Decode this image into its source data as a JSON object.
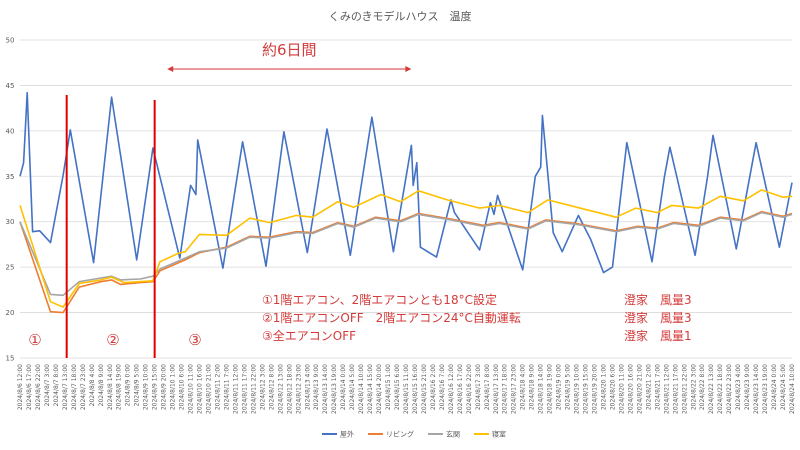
{
  "chart_data": {
    "type": "line",
    "title": "くみのきモデルハウス　温度",
    "ylim": [
      15,
      50
    ],
    "yticks": [
      "15",
      "20",
      "25",
      "30",
      "35",
      "40",
      "45",
      "50"
    ],
    "grid": true,
    "legend_position": "bottom",
    "x_tick_labels": [
      "2024/8/6 12:00",
      "2024/8/6 17:00",
      "2024/8/6 22:00",
      "2024/8/7 3:00",
      "2024/8/7 8:00",
      "2024/8/7 13:00",
      "2024/8/7 18:00",
      "2024/8/7 23:00",
      "2024/8/8 4:00",
      "2024/8/8 9:00",
      "2024/8/8 14:00",
      "2024/8/8 19:00",
      "2024/8/9 0:00",
      "2024/8/9 5:00",
      "2024/8/9 10:00",
      "2024/8/9 15:00",
      "2024/8/9 20:00",
      "2024/8/10 1:00",
      "2024/8/10 6:00",
      "2024/8/10 11:00",
      "2024/8/10 16:00",
      "2024/8/10 21:00",
      "2024/8/11 2:00",
      "2024/8/11 7:00",
      "2024/8/11 12:00",
      "2024/8/11 17:00",
      "2024/8/11 22:00",
      "2024/8/12 3:00",
      "2024/8/12 8:00",
      "2024/8/12 13:00",
      "2024/8/12 18:00",
      "2024/8/12 23:00",
      "2024/8/13 4:00",
      "2024/8/13 9:00",
      "2024/8/13 14:00",
      "2024/8/13 19:00",
      "2024/8/14 0:00",
      "2024/8/14 5:00",
      "2024/8/14 10:00",
      "2024/8/14 15:00",
      "2024/8/14 20:00",
      "2024/8/15 1:00",
      "2024/8/15 6:00",
      "2024/8/15 11:00",
      "2024/8/15 16:00",
      "2024/8/15 21:00",
      "2024/8/16 2:00",
      "2024/8/16 7:00",
      "2024/8/16 12:00",
      "2024/8/16 17:00",
      "2024/8/16 22:00",
      "2024/8/17 3:00",
      "2024/8/17 8:00",
      "2024/8/17 13:00",
      "2024/8/17 18:00",
      "2024/8/17 23:00",
      "2024/8/18 4:00",
      "2024/8/18 9:00",
      "2024/8/18 14:00",
      "2024/8/18 19:00",
      "2024/8/19 0:00",
      "2024/8/19 5:00",
      "2024/8/19 10:00",
      "2024/8/19 15:00",
      "2024/8/19 20:00",
      "2024/8/20 1:00",
      "2024/8/20 6:00",
      "2024/8/20 11:00",
      "2024/8/20 16:00",
      "2024/8/20 21:00",
      "2024/8/21 2:00",
      "2024/8/21 7:00",
      "2024/8/21 12:00",
      "2024/8/21 17:00",
      "2024/8/21 22:00",
      "2024/8/22 3:00",
      "2024/8/22 8:00",
      "2024/8/22 13:00",
      "2024/8/22 18:00",
      "2024/8/22 23:00",
      "2024/8/23 4:00",
      "2024/8/23 9:00",
      "2024/8/23 14:00",
      "2024/8/23 19:00",
      "2024/8/24 0:00",
      "2024/8/24 5:00",
      "2024/8/24 10:00"
    ],
    "series": [
      {
        "name": "屋外",
        "color": "#4472c4",
        "points": [
          [
            "2024/8/6 12:00",
            35.0
          ],
          [
            "2024/8/6 14:00",
            36.5
          ],
          [
            "2024/8/6 16:00",
            44.2
          ],
          [
            "2024/8/6 19:00",
            28.9
          ],
          [
            "2024/8/6 23:00",
            29.0
          ],
          [
            "2024/8/7 5:00",
            27.7
          ],
          [
            "2024/8/7 12:00",
            35.1
          ],
          [
            "2024/8/7 16:00",
            40.1
          ],
          [
            "2024/8/8 5:00",
            25.5
          ],
          [
            "2024/8/8 15:00",
            43.7
          ],
          [
            "2024/8/9 5:00",
            25.8
          ],
          [
            "2024/8/9 14:00",
            38.1
          ],
          [
            "2024/8/10 5:00",
            26.0
          ],
          [
            "2024/8/10 11:00",
            34.0
          ],
          [
            "2024/8/10 14:00",
            33.0
          ],
          [
            "2024/8/10 15:00",
            39.0
          ],
          [
            "2024/8/11 5:00",
            24.9
          ],
          [
            "2024/8/11 16:00",
            38.8
          ],
          [
            "2024/8/12 5:00",
            25.1
          ],
          [
            "2024/8/12 15:00",
            39.9
          ],
          [
            "2024/8/13 4:00",
            26.6
          ],
          [
            "2024/8/13 15:00",
            40.2
          ],
          [
            "2024/8/14 4:00",
            26.3
          ],
          [
            "2024/8/14 16:00",
            41.5
          ],
          [
            "2024/8/15 4:00",
            26.7
          ],
          [
            "2024/8/15 14:00",
            38.4
          ],
          [
            "2024/8/15 15:00",
            34.0
          ],
          [
            "2024/8/15 17:00",
            36.5
          ],
          [
            "2024/8/15 19:00",
            27.2
          ],
          [
            "2024/8/16 4:00",
            26.1
          ],
          [
            "2024/8/16 12:00",
            32.4
          ],
          [
            "2024/8/16 14:00",
            31.0
          ],
          [
            "2024/8/17 4:00",
            26.9
          ],
          [
            "2024/8/17 10:00",
            32.1
          ],
          [
            "2024/8/17 12:00",
            30.8
          ],
          [
            "2024/8/17 14:00",
            32.9
          ],
          [
            "2024/8/18 4:00",
            24.7
          ],
          [
            "2024/8/18 11:00",
            35.0
          ],
          [
            "2024/8/18 14:00",
            36.0
          ],
          [
            "2024/8/18 15:00",
            41.7
          ],
          [
            "2024/8/18 21:00",
            28.8
          ],
          [
            "2024/8/19 2:00",
            26.7
          ],
          [
            "2024/8/19 11:00",
            30.7
          ],
          [
            "2024/8/19 18:00",
            28.0
          ],
          [
            "2024/8/20 1:00",
            24.4
          ],
          [
            "2024/8/20 6:00",
            25.0
          ],
          [
            "2024/8/20 14:00",
            38.7
          ],
          [
            "2024/8/21 4:00",
            25.6
          ],
          [
            "2024/8/21 11:00",
            35.0
          ],
          [
            "2024/8/21 14:00",
            38.2
          ],
          [
            "2024/8/22 4:00",
            26.3
          ],
          [
            "2024/8/22 11:00",
            35.0
          ],
          [
            "2024/8/22 14:00",
            39.5
          ],
          [
            "2024/8/23 3:00",
            27.0
          ],
          [
            "2024/8/23 11:00",
            35.5
          ],
          [
            "2024/8/23 14:00",
            38.7
          ],
          [
            "2024/8/24 3:00",
            27.2
          ],
          [
            "2024/8/24 10:00",
            34.3
          ]
        ]
      },
      {
        "name": "リビング",
        "color": "#ed7d31",
        "points": [
          [
            "2024/8/6 12:00",
            30.0
          ],
          [
            "2024/8/7 5:00",
            20.1
          ],
          [
            "2024/8/7 12:00",
            20.0
          ],
          [
            "2024/8/7 21:00",
            22.8
          ],
          [
            "2024/8/8 9:00",
            23.4
          ],
          [
            "2024/8/8 15:00",
            23.6
          ],
          [
            "2024/8/8 20:00",
            23.1
          ],
          [
            "2024/8/9 7:00",
            23.3
          ],
          [
            "2024/8/9 14:00",
            23.4
          ],
          [
            "2024/8/9 18:00",
            24.6
          ],
          [
            "2024/8/10 8:00",
            25.8
          ],
          [
            "2024/8/10 16:00",
            26.6
          ],
          [
            "2024/8/11 7:00",
            27.2
          ],
          [
            "2024/8/11 20:00",
            28.4
          ],
          [
            "2024/8/12 7:00",
            28.3
          ],
          [
            "2024/8/12 22:00",
            28.9
          ],
          [
            "2024/8/13 7:00",
            28.8
          ],
          [
            "2024/8/13 21:00",
            29.9
          ],
          [
            "2024/8/14 6:00",
            29.5
          ],
          [
            "2024/8/14 18:00",
            30.5
          ],
          [
            "2024/8/15 8:00",
            30.1
          ],
          [
            "2024/8/15 18:00",
            30.9
          ],
          [
            "2024/8/16 12:00",
            30.3
          ],
          [
            "2024/8/17 6:00",
            29.6
          ],
          [
            "2024/8/17 15:00",
            29.9
          ],
          [
            "2024/8/18 7:00",
            29.3
          ],
          [
            "2024/8/18 17:00",
            30.2
          ],
          [
            "2024/8/19 10:00",
            29.8
          ],
          [
            "2024/8/20 8:00",
            29.0
          ],
          [
            "2024/8/20 20:00",
            29.5
          ],
          [
            "2024/8/21 7:00",
            29.3
          ],
          [
            "2024/8/21 16:00",
            29.9
          ],
          [
            "2024/8/22 6:00",
            29.6
          ],
          [
            "2024/8/22 18:00",
            30.5
          ],
          [
            "2024/8/23 7:00",
            30.2
          ],
          [
            "2024/8/23 17:00",
            31.1
          ],
          [
            "2024/8/24 5:00",
            30.6
          ],
          [
            "2024/8/24 10:00",
            30.9
          ]
        ]
      },
      {
        "name": "玄関",
        "color": "#a5a5a5",
        "points": [
          [
            "2024/8/6 12:00",
            30.0
          ],
          [
            "2024/8/7 5:00",
            22.0
          ],
          [
            "2024/8/7 12:00",
            21.9
          ],
          [
            "2024/8/7 21:00",
            23.4
          ],
          [
            "2024/8/8 9:00",
            23.8
          ],
          [
            "2024/8/8 15:00",
            24.0
          ],
          [
            "2024/8/8 20:00",
            23.6
          ],
          [
            "2024/8/9 7:00",
            23.7
          ],
          [
            "2024/8/9 14:00",
            24.0
          ],
          [
            "2024/8/9 18:00",
            24.8
          ],
          [
            "2024/8/10 8:00",
            26.0
          ],
          [
            "2024/8/10 16:00",
            26.7
          ],
          [
            "2024/8/11 7:00",
            27.1
          ],
          [
            "2024/8/11 20:00",
            28.3
          ],
          [
            "2024/8/12 7:00",
            28.2
          ],
          [
            "2024/8/12 22:00",
            28.8
          ],
          [
            "2024/8/13 7:00",
            28.7
          ],
          [
            "2024/8/13 21:00",
            29.8
          ],
          [
            "2024/8/14 6:00",
            29.4
          ],
          [
            "2024/8/14 18:00",
            30.4
          ],
          [
            "2024/8/15 8:00",
            30.0
          ],
          [
            "2024/8/15 18:00",
            30.8
          ],
          [
            "2024/8/16 12:00",
            30.2
          ],
          [
            "2024/8/17 6:00",
            29.5
          ],
          [
            "2024/8/17 15:00",
            29.8
          ],
          [
            "2024/8/18 7:00",
            29.2
          ],
          [
            "2024/8/18 17:00",
            30.1
          ],
          [
            "2024/8/19 10:00",
            29.7
          ],
          [
            "2024/8/20 8:00",
            28.9
          ],
          [
            "2024/8/20 20:00",
            29.4
          ],
          [
            "2024/8/21 7:00",
            29.2
          ],
          [
            "2024/8/21 16:00",
            29.8
          ],
          [
            "2024/8/22 6:00",
            29.5
          ],
          [
            "2024/8/22 18:00",
            30.4
          ],
          [
            "2024/8/23 7:00",
            30.1
          ],
          [
            "2024/8/23 17:00",
            31.0
          ],
          [
            "2024/8/24 5:00",
            30.5
          ],
          [
            "2024/8/24 10:00",
            30.8
          ]
        ]
      },
      {
        "name": "寝室",
        "color": "#ffc000",
        "points": [
          [
            "2024/8/6 12:00",
            31.8
          ],
          [
            "2024/8/7 5:00",
            21.2
          ],
          [
            "2024/8/7 12:00",
            20.6
          ],
          [
            "2024/8/7 21:00",
            23.2
          ],
          [
            "2024/8/8 9:00",
            23.6
          ],
          [
            "2024/8/8 15:00",
            23.9
          ],
          [
            "2024/8/8 22:00",
            23.3
          ],
          [
            "2024/8/9 14:00",
            23.5
          ],
          [
            "2024/8/9 18:00",
            25.6
          ],
          [
            "2024/8/10 4:00",
            26.5
          ],
          [
            "2024/8/10 8:00",
            26.7
          ],
          [
            "2024/8/10 16:00",
            28.6
          ],
          [
            "2024/8/11 7:00",
            28.5
          ],
          [
            "2024/8/11 20:00",
            30.4
          ],
          [
            "2024/8/12 7:00",
            29.9
          ],
          [
            "2024/8/12 22:00",
            30.7
          ],
          [
            "2024/8/13 7:00",
            30.5
          ],
          [
            "2024/8/13 21:00",
            32.2
          ],
          [
            "2024/8/14 6:00",
            31.6
          ],
          [
            "2024/8/14 21:00",
            33.0
          ],
          [
            "2024/8/15 8:00",
            32.2
          ],
          [
            "2024/8/15 18:00",
            33.4
          ],
          [
            "2024/8/16 10:00",
            32.4
          ],
          [
            "2024/8/17 4:00",
            31.5
          ],
          [
            "2024/8/17 15:00",
            31.8
          ],
          [
            "2024/8/18 7:00",
            31.0
          ],
          [
            "2024/8/18 18:00",
            32.4
          ],
          [
            "2024/8/19 10:00",
            31.6
          ],
          [
            "2024/8/20 8:00",
            30.5
          ],
          [
            "2024/8/20 19:00",
            31.5
          ],
          [
            "2024/8/21 7:00",
            31.0
          ],
          [
            "2024/8/21 15:00",
            31.8
          ],
          [
            "2024/8/22 6:00",
            31.5
          ],
          [
            "2024/8/22 18:00",
            32.8
          ],
          [
            "2024/8/23 7:00",
            32.3
          ],
          [
            "2024/8/23 17:00",
            33.5
          ],
          [
            "2024/8/24 5:00",
            32.7
          ],
          [
            "2024/8/24 10:00",
            32.8
          ]
        ]
      }
    ],
    "annotations": {
      "period_label": "約6日間",
      "period_start": "2024/8/9 22:00",
      "period_end": "2024/8/15 14:00",
      "marker_lines": [
        "2024/8/7 14:00",
        "2024/8/9 15:00"
      ],
      "marker_color": "#e00000",
      "phase_labels": [
        "①",
        "②",
        "③"
      ],
      "notes": [
        {
          "text": "①1階エアコン、2階エアコンとも18°C設定",
          "right": "澄家　風量3"
        },
        {
          "text": "②1階エアコンOFF　2階エアコン24°C自動運転",
          "right": "澄家　風量3"
        },
        {
          "text": "③全エアコンOFF",
          "right": "澄家　風量1"
        }
      ]
    }
  }
}
